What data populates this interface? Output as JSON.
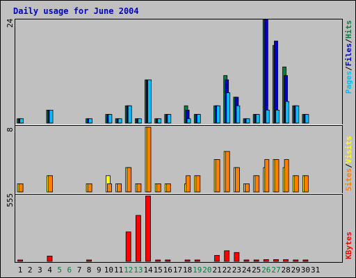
{
  "chart_data": {
    "type": "bar",
    "title": "Daily usage for June 2004",
    "days": [
      1,
      2,
      3,
      4,
      5,
      6,
      7,
      8,
      9,
      10,
      11,
      12,
      13,
      14,
      15,
      16,
      17,
      18,
      19,
      20,
      21,
      22,
      23,
      24,
      25,
      26,
      27,
      28,
      29,
      30,
      31
    ],
    "weekend_days": [
      5,
      6,
      12,
      13,
      19,
      20,
      26,
      27
    ],
    "panels": [
      {
        "id": "hits-files-pages",
        "ymax_label": "24",
        "ylim": [
          0,
          24
        ],
        "label_parts": [
          {
            "text": "Pages",
            "color": "#00c0ff"
          },
          {
            "text": "/",
            "color": "#000000"
          },
          {
            "text": "Files",
            "color": "#0000c0"
          },
          {
            "text": "/",
            "color": "#000000"
          },
          {
            "text": "Hits",
            "color": "#008040"
          }
        ],
        "series": [
          {
            "name": "Hits",
            "color": "#008040",
            "values": [
              1,
              0,
              0,
              3,
              0,
              0,
              0,
              1,
              0,
              2,
              1,
              4,
              1,
              10,
              1,
              2,
              0,
              4,
              2,
              0,
              4,
              11,
              6,
              1,
              2,
              24,
              18,
              13,
              4,
              2,
              0
            ]
          },
          {
            "name": "Files",
            "color": "#0000c0",
            "values": [
              1,
              0,
              0,
              3,
              0,
              0,
              0,
              1,
              0,
              2,
              1,
              4,
              1,
              10,
              1,
              2,
              0,
              3,
              2,
              0,
              4,
              10,
              6,
              1,
              2,
              24,
              19,
              11,
              4,
              2,
              0
            ]
          },
          {
            "name": "Pages",
            "color": "#00c0ff",
            "values": [
              1,
              0,
              0,
              3,
              0,
              0,
              0,
              1,
              0,
              2,
              1,
              4,
              1,
              10,
              1,
              2,
              0,
              1,
              2,
              0,
              4,
              7,
              4,
              1,
              2,
              3,
              3,
              5,
              4,
              2,
              0
            ]
          }
        ]
      },
      {
        "id": "visits-sites",
        "ymax_label": "8",
        "ylim": [
          0,
          8
        ],
        "label_parts": [
          {
            "text": "Sites",
            "color": "#ff8000"
          },
          {
            "text": "/",
            "color": "#000000"
          },
          {
            "text": "Visits",
            "color": "#ffff00"
          }
        ],
        "series": [
          {
            "name": "Visits",
            "color": "#ffff00",
            "values": [
              1,
              0,
              0,
              2,
              0,
              0,
              0,
              1,
              0,
              2,
              1,
              3,
              1,
              8,
              1,
              1,
              0,
              1,
              2,
              0,
              4,
              5,
              3,
              1,
              2,
              3,
              4,
              3,
              2,
              2,
              0
            ]
          },
          {
            "name": "Sites",
            "color": "#ff8000",
            "values": [
              1,
              0,
              0,
              2,
              0,
              0,
              0,
              1,
              0,
              1,
              1,
              3,
              1,
              8,
              1,
              1,
              0,
              2,
              2,
              0,
              4,
              5,
              3,
              1,
              2,
              4,
              4,
              4,
              2,
              2,
              0
            ]
          }
        ]
      },
      {
        "id": "kbytes",
        "ymax_label": "555",
        "ylim": [
          0,
          555
        ],
        "label_parts": [
          {
            "text": "KBytes",
            "color": "#ff0000"
          }
        ],
        "series": [
          {
            "name": "KBytes",
            "color": "#ff0000",
            "values": [
              8,
              0,
              0,
              45,
              0,
              0,
              0,
              7,
              0,
              0,
              0,
              250,
              390,
              555,
              6,
              7,
              0,
              10,
              10,
              0,
              50,
              90,
              75,
              7,
              7,
              15,
              15,
              14,
              9,
              10,
              0
            ]
          }
        ]
      }
    ],
    "colors": {
      "background": "#c0c0c0",
      "plot_background": "#c0c0c0",
      "title_color": "#0000c0",
      "weekday_label": "#000000",
      "weekend_label": "#008040"
    }
  }
}
